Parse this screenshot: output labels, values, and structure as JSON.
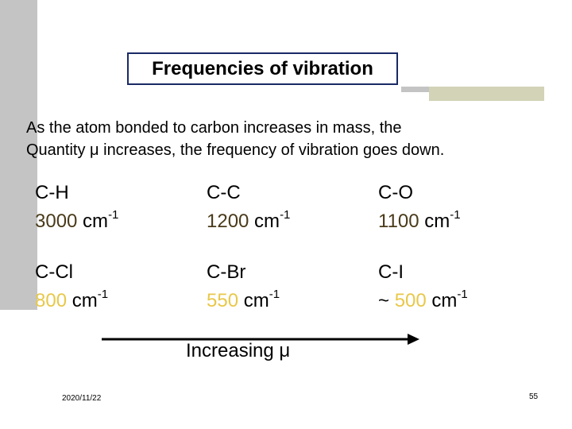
{
  "title": "Frequencies of vibration",
  "intro": {
    "line1": "As the atom bonded to carbon increases in mass, the",
    "line2": "Quantity μ increases, the frequency of vibration goes down."
  },
  "bonds": [
    {
      "label": "C-H",
      "prefix": "",
      "value": "3000",
      "unit": " cm",
      "exp": "-1"
    },
    {
      "label": "C-C",
      "prefix": "",
      "value": "1200",
      "unit": " cm",
      "exp": "-1"
    },
    {
      "label": "C-O",
      "prefix": "",
      "value": "1100",
      "unit": " cm",
      "exp": "-1"
    },
    {
      "label": "C-Cl",
      "prefix": "",
      "value": "800",
      "unit": " cm",
      "exp": "-1"
    },
    {
      "label": "C-Br",
      "prefix": "",
      "value": "550",
      "unit": " cm",
      "exp": "-1"
    },
    {
      "label": "C-I",
      "prefix": "~ ",
      "value": "500",
      "unit": " cm",
      "exp": "-1"
    }
  ],
  "arrow_label": "Increasing μ",
  "footer": {
    "date": "2020/11/22",
    "page": "55"
  },
  "colors": {
    "value_dark": "#4a3a1a",
    "value_yellow": "#e8c84a",
    "title_border": "#1a2a66"
  }
}
